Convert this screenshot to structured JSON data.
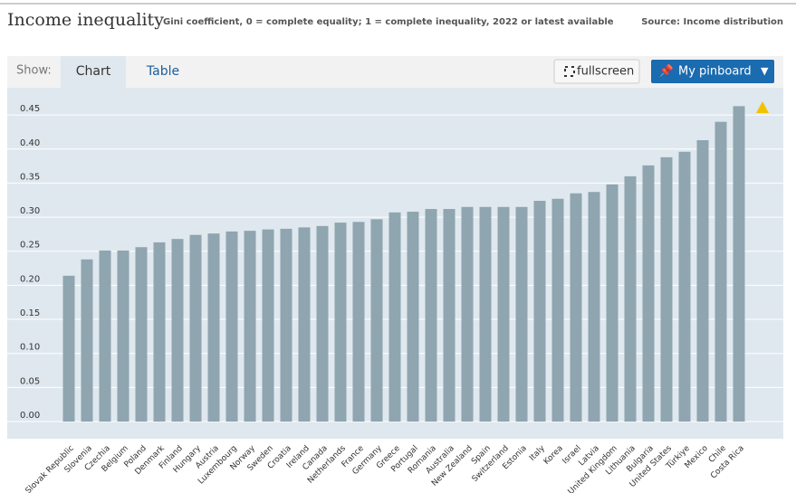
{
  "header": {
    "title": "Income inequality",
    "subtitle": "Gini coefficient, 0 = complete equality; 1 = complete inequality, 2022 or latest available",
    "source": "Source: Income distribution"
  },
  "toolbar": {
    "show": "Show:",
    "tabs": [
      "Chart",
      "Table"
    ],
    "fullscreen": "fullscreen",
    "pinboard": "My pinboard"
  },
  "chart_data": {
    "type": "bar",
    "color": "#8fa5b0",
    "grid": true,
    "categories": [
      "Slovak Republic",
      "Slovenia",
      "Czechia",
      "Belgium",
      "Poland",
      "Denmark",
      "Finland",
      "Hungary",
      "Austria",
      "Luxembourg",
      "Norway",
      "Sweden",
      "Croatia",
      "Ireland",
      "Canada",
      "Netherlands",
      "France",
      "Germany",
      "Greece",
      "Portugal",
      "Romania",
      "Australia",
      "New Zealand",
      "Spain",
      "Switzerland",
      "Estonia",
      "Italy",
      "Korea",
      "Israel",
      "Latvia",
      "United Kingdom",
      "Lithuania",
      "Bulgaria",
      "United States",
      "Türkiye",
      "Mexico",
      "Chile",
      "Costa Rica"
    ],
    "values": [
      0.214,
      0.238,
      0.251,
      0.251,
      0.256,
      0.263,
      0.268,
      0.274,
      0.276,
      0.279,
      0.28,
      0.282,
      0.283,
      0.285,
      0.287,
      0.292,
      0.293,
      0.297,
      0.307,
      0.308,
      0.312,
      0.312,
      0.315,
      0.315,
      0.315,
      0.315,
      0.324,
      0.327,
      0.335,
      0.337,
      0.348,
      0.36,
      0.376,
      0.388,
      0.396,
      0.413,
      0.44,
      0.463
    ],
    "ylim": [
      0,
      0.49
    ],
    "yticks": [
      {
        "value": 0,
        "label": "0.00"
      },
      {
        "value": 0.05,
        "label": "0.05"
      },
      {
        "value": 0.1,
        "label": "0.10"
      },
      {
        "value": 0.15,
        "label": "0.15"
      },
      {
        "value": 0.2,
        "label": "0.20"
      },
      {
        "value": 0.25,
        "label": "0.25"
      },
      {
        "value": 0.3,
        "label": "0.30"
      },
      {
        "value": 0.35,
        "label": "0.35"
      },
      {
        "value": 0.4,
        "label": "0.40"
      },
      {
        "value": 0.45,
        "label": "0.45"
      }
    ]
  }
}
